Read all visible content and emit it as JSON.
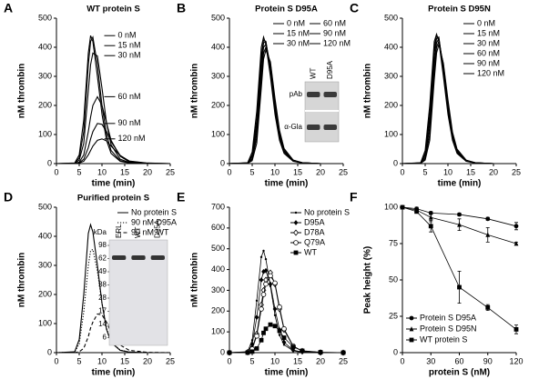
{
  "chart_data": [
    {
      "type": "line",
      "panel": "A",
      "title": "WT protein S",
      "xlabel": "time (min)",
      "ylabel": "nM thrombin",
      "xlim": [
        0,
        25
      ],
      "xticks": [
        0,
        5,
        10,
        15,
        20,
        25
      ],
      "ylim": [
        0,
        500
      ],
      "yticks": [
        0,
        100,
        200,
        300,
        400,
        500
      ],
      "legend": "at peak",
      "x": [
        0,
        4,
        5,
        6,
        7,
        7.5,
        8,
        9,
        10,
        11,
        12,
        14,
        16,
        20,
        25
      ],
      "series": [
        {
          "name": "0 nM",
          "color": "#000000",
          "values": [
            0,
            2,
            30,
            150,
            380,
            440,
            420,
            300,
            170,
            80,
            35,
            8,
            2,
            0,
            0
          ]
        },
        {
          "name": "15 nM",
          "color": "#000000",
          "values": [
            0,
            1,
            20,
            110,
            340,
            420,
            435,
            340,
            200,
            100,
            45,
            10,
            3,
            0,
            0
          ]
        },
        {
          "name": "30 nM",
          "color": "#000000",
          "values": [
            0,
            1,
            12,
            70,
            250,
            340,
            380,
            370,
            260,
            140,
            65,
            15,
            4,
            0,
            0
          ]
        },
        {
          "name": "60 nM",
          "color": "#000000",
          "values": [
            0,
            0,
            5,
            30,
            110,
            160,
            200,
            230,
            200,
            140,
            80,
            25,
            6,
            1,
            0
          ]
        },
        {
          "name": "90 nM",
          "color": "#000000",
          "values": [
            0,
            0,
            3,
            15,
            55,
            85,
            110,
            138,
            135,
            110,
            75,
            28,
            8,
            1,
            0
          ]
        },
        {
          "name": "120 nM",
          "color": "#000000",
          "values": [
            0,
            0,
            2,
            8,
            30,
            45,
            60,
            80,
            85,
            78,
            60,
            28,
            9,
            2,
            0
          ]
        }
      ]
    },
    {
      "type": "line",
      "panel": "B",
      "title": "Protein S D95A",
      "xlabel": "time (min)",
      "ylabel": "nM thrombin",
      "xlim": [
        0,
        25
      ],
      "xticks": [
        0,
        5,
        10,
        15,
        20,
        25
      ],
      "ylim": [
        0,
        500
      ],
      "yticks": [
        0,
        100,
        200,
        300,
        400,
        500
      ],
      "legend": "upper right",
      "legend_columns": 2,
      "x": [
        0,
        4,
        5,
        6,
        7,
        7.5,
        8,
        9,
        10,
        11,
        12,
        14,
        16,
        20,
        25
      ],
      "series": [
        {
          "name": "0 nM",
          "color": "#000000",
          "values": [
            0,
            3,
            40,
            180,
            400,
            435,
            410,
            300,
            170,
            80,
            35,
            8,
            2,
            0,
            0
          ]
        },
        {
          "name": "15 nM",
          "color": "#000000",
          "values": [
            0,
            2,
            30,
            150,
            370,
            425,
            420,
            320,
            185,
            90,
            40,
            9,
            2,
            0,
            0
          ]
        },
        {
          "name": "30 nM",
          "color": "#000000",
          "values": [
            0,
            2,
            25,
            130,
            350,
            415,
            420,
            330,
            195,
            95,
            42,
            10,
            3,
            0,
            0
          ]
        },
        {
          "name": "60 nM",
          "color": "#000000",
          "values": [
            0,
            1,
            18,
            110,
            320,
            400,
            410,
            340,
            205,
            100,
            45,
            11,
            3,
            0,
            0
          ]
        },
        {
          "name": "90 nM",
          "color": "#000000",
          "values": [
            0,
            1,
            14,
            90,
            290,
            380,
            400,
            345,
            215,
            110,
            50,
            12,
            3,
            0,
            0
          ]
        },
        {
          "name": "120 nM",
          "color": "#000000",
          "values": [
            0,
            1,
            10,
            70,
            260,
            360,
            390,
            350,
            225,
            115,
            52,
            12,
            3,
            0,
            0
          ]
        }
      ],
      "inset": {
        "columns": [
          "WT",
          "D95A"
        ],
        "rows": [
          "pAb",
          "α-Gla"
        ]
      }
    },
    {
      "type": "line",
      "panel": "C",
      "title": "Protein S D95N",
      "xlabel": "time (min)",
      "ylabel": "nM thrombin",
      "xlim": [
        0,
        25
      ],
      "xticks": [
        0,
        5,
        10,
        15,
        20,
        25
      ],
      "ylim": [
        0,
        500
      ],
      "yticks": [
        0,
        100,
        200,
        300,
        400,
        500
      ],
      "legend": "upper right",
      "x": [
        0,
        4,
        5,
        6,
        7,
        7.5,
        8,
        9,
        10,
        11,
        12,
        14,
        16,
        20,
        25
      ],
      "series": [
        {
          "name": "0 nM",
          "color": "#000000",
          "values": [
            0,
            3,
            45,
            200,
            420,
            445,
            420,
            300,
            170,
            80,
            35,
            8,
            2,
            0,
            0
          ]
        },
        {
          "name": "15 nM",
          "color": "#000000",
          "values": [
            0,
            2,
            35,
            170,
            400,
            440,
            430,
            310,
            180,
            85,
            38,
            9,
            2,
            0,
            0
          ]
        },
        {
          "name": "30 nM",
          "color": "#000000",
          "values": [
            0,
            2,
            30,
            150,
            380,
            430,
            435,
            320,
            190,
            90,
            40,
            9,
            2,
            0,
            0
          ]
        },
        {
          "name": "60 nM",
          "color": "#000000",
          "values": [
            0,
            1,
            22,
            125,
            350,
            415,
            430,
            330,
            200,
            95,
            43,
            10,
            3,
            0,
            0
          ]
        },
        {
          "name": "90 nM",
          "color": "#000000",
          "values": [
            0,
            1,
            16,
            100,
            320,
            400,
            420,
            340,
            210,
            100,
            46,
            11,
            3,
            0,
            0
          ]
        },
        {
          "name": "120 nM",
          "color": "#000000",
          "values": [
            0,
            1,
            12,
            80,
            290,
            380,
            410,
            345,
            220,
            108,
            50,
            12,
            3,
            0,
            0
          ]
        }
      ]
    },
    {
      "type": "line",
      "panel": "D",
      "title": "Purified protein S",
      "xlabel": "time (min)",
      "ylabel": "nM thrombin",
      "xlim": [
        0,
        25
      ],
      "xticks": [
        0,
        5,
        10,
        15,
        20,
        25
      ],
      "ylim": [
        0,
        500
      ],
      "yticks": [
        0,
        100,
        200,
        300,
        400,
        500
      ],
      "legend": "upper right",
      "x": [
        0,
        4,
        5,
        6,
        7,
        7.5,
        8,
        9,
        10,
        11,
        12,
        14,
        16,
        20,
        25
      ],
      "series": [
        {
          "name": "No protein S",
          "color": "#000000",
          "line_style": "solid",
          "values": [
            0,
            3,
            45,
            200,
            410,
            440,
            415,
            300,
            170,
            80,
            35,
            8,
            2,
            0,
            0
          ]
        },
        {
          "name": "90 nM D95A",
          "color": "#000000",
          "line_style": "dotted",
          "values": [
            0,
            2,
            30,
            140,
            300,
            350,
            355,
            280,
            170,
            85,
            38,
            9,
            2,
            0,
            0
          ]
        },
        {
          "name": "90 nM WT",
          "color": "#000000",
          "line_style": "dashed",
          "values": [
            0,
            0,
            3,
            15,
            55,
            85,
            105,
            133,
            130,
            105,
            70,
            26,
            8,
            1,
            0
          ]
        }
      ],
      "inset": {
        "unit": "kDa",
        "columns": [
          "ERL",
          "WT",
          "D95A"
        ],
        "ladder": [
          "98",
          "62",
          "49",
          "38",
          "28",
          "17",
          "14",
          "6"
        ]
      }
    },
    {
      "type": "line",
      "panel": "E",
      "xlabel": "time (min)",
      "ylabel": "nM thrombin",
      "xlim": [
        0,
        25
      ],
      "xticks": [
        0,
        5,
        10,
        15,
        20,
        25
      ],
      "ylim": [
        0,
        700
      ],
      "yticks": [
        0,
        100,
        200,
        300,
        400,
        500,
        600,
        700
      ],
      "legend": "upper right",
      "x": [
        0,
        4,
        5,
        6,
        7,
        7.5,
        8,
        9,
        10,
        11,
        12,
        14,
        16,
        20,
        25
      ],
      "series": [
        {
          "name": "No protein S",
          "color": "#000000",
          "marker": "dot",
          "values": [
            0,
            5,
            60,
            250,
            460,
            490,
            450,
            320,
            180,
            85,
            38,
            9,
            2,
            0,
            0
          ]
        },
        {
          "name": "D95A",
          "color": "#000000",
          "marker": "diamond-filled",
          "values": [
            0,
            3,
            40,
            170,
            350,
            390,
            395,
            330,
            210,
            110,
            50,
            12,
            3,
            0,
            0
          ]
        },
        {
          "name": "D78A",
          "color": "#000000",
          "marker": "diamond-open",
          "values": [
            0,
            2,
            20,
            90,
            230,
            300,
            350,
            385,
            330,
            210,
            110,
            30,
            8,
            1,
            0
          ]
        },
        {
          "name": "Q79A",
          "color": "#000000",
          "marker": "circle-open",
          "values": [
            0,
            2,
            18,
            80,
            210,
            280,
            330,
            370,
            335,
            220,
            115,
            32,
            8,
            1,
            0
          ]
        },
        {
          "name": "WT",
          "color": "#000000",
          "marker": "square",
          "values": [
            0,
            0,
            5,
            20,
            60,
            95,
            115,
            135,
            128,
            105,
            72,
            28,
            9,
            2,
            0
          ]
        }
      ]
    },
    {
      "type": "line",
      "panel": "F",
      "xlabel": "protein S (nM)",
      "ylabel": "Peak height (%)",
      "xlim": [
        0,
        120
      ],
      "xticks": [
        0,
        30,
        60,
        90,
        120
      ],
      "ylim": [
        0,
        100
      ],
      "yticks": [
        0,
        25,
        50,
        75,
        100
      ],
      "legend": "lower left",
      "x": [
        0,
        15,
        30,
        60,
        90,
        120
      ],
      "series": [
        {
          "name": "Protein S D95A",
          "color": "#000000",
          "marker": "circle-filled",
          "values": [
            100,
            99,
            96,
            95,
            92,
            87
          ],
          "errors": [
            0,
            1,
            1,
            1,
            1,
            2.5
          ]
        },
        {
          "name": "Protein S D95N",
          "color": "#000000",
          "marker": "triangle",
          "values": [
            100,
            98,
            93,
            88,
            81,
            75
          ],
          "errors": [
            0,
            1,
            3,
            4,
            5,
            1
          ]
        },
        {
          "name": "WT protein S",
          "color": "#000000",
          "marker": "square",
          "values": [
            100,
            97,
            87,
            45,
            31,
            16
          ],
          "errors": [
            0,
            1,
            4,
            11,
            2,
            3
          ]
        }
      ]
    }
  ]
}
